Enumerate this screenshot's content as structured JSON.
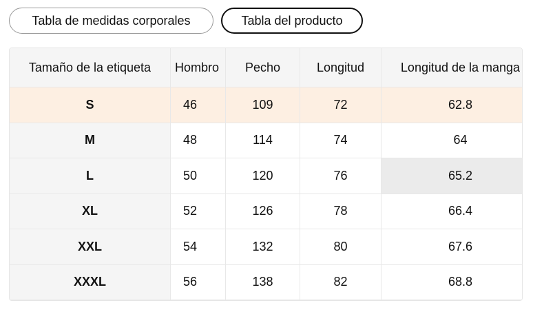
{
  "tabs": [
    "Tabla de medidas corporales",
    "Tabla del producto"
  ],
  "table": {
    "headers": [
      "Tamaño de la etiqueta",
      "Hombro",
      "Pecho",
      "Longitud",
      "Longitud de la manga"
    ],
    "rows": [
      [
        "S",
        "46",
        "109",
        "72",
        "62.8"
      ],
      [
        "M",
        "48",
        "114",
        "74",
        "64"
      ],
      [
        "L",
        "50",
        "120",
        "76",
        "65.2"
      ],
      [
        "XL",
        "52",
        "126",
        "78",
        "66.4"
      ],
      [
        "XXL",
        "54",
        "132",
        "80",
        "67.6"
      ],
      [
        "XXXL",
        "56",
        "138",
        "82",
        "68.8"
      ]
    ]
  }
}
